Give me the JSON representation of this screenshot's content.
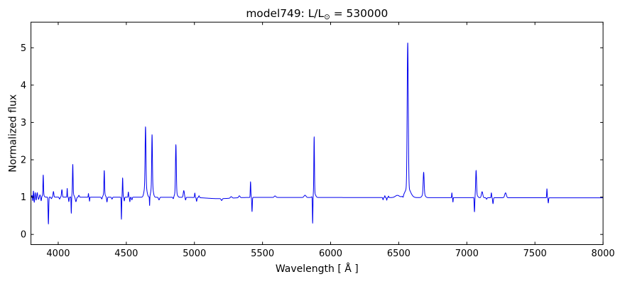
{
  "chart_data": {
    "type": "line",
    "title": "model749: L/L⊙ = 530000",
    "title_parts": {
      "prefix": "model749: L/L",
      "sun": "⊙",
      "suffix": " = 530000"
    },
    "xlabel": "Wavelength [ Å ]",
    "ylabel": "Normalized flux",
    "xlim": [
      3800,
      8000
    ],
    "ylim": [
      -0.272,
      5.686
    ],
    "xticks": [
      4000,
      4500,
      5000,
      5500,
      6000,
      6500,
      7000,
      7500,
      8000
    ],
    "yticks": [
      0,
      1,
      2,
      3,
      4,
      5
    ],
    "grid": false,
    "legend": "none",
    "line_color": "#0000ee",
    "frame_color": "#000000",
    "background_color": "#ffffff",
    "continuum": {
      "start_flux": 1.0,
      "end_flux": 0.98
    },
    "emission_lines": [
      {
        "wavelength": 3890,
        "peak_flux": 1.6,
        "sigma": 2.0,
        "base_amp": 0.07,
        "base_sigma": 6
      },
      {
        "wavelength": 3965,
        "peak_flux": 1.15,
        "sigma": 3.0
      },
      {
        "wavelength": 4027,
        "peak_flux": 1.2,
        "sigma": 3.0
      },
      {
        "wavelength": 4107,
        "peak_flux": 1.88,
        "sigma": 2.2,
        "base_amp": 0.1,
        "base_sigma": 7
      },
      {
        "wavelength": 4338,
        "peak_flux": 1.72,
        "sigma": 2.2,
        "base_amp": 0.1,
        "base_sigma": 7
      },
      {
        "wavelength": 4473,
        "peak_flux": 1.52,
        "sigma": 2.0
      },
      {
        "wavelength": 4641,
        "peak_flux": 2.89,
        "sigma": 3.0,
        "base_amp": 0.34,
        "base_sigma": 9
      },
      {
        "wavelength": 4689,
        "peak_flux": 2.68,
        "sigma": 2.6,
        "base_amp": 0.3,
        "base_sigma": 8
      },
      {
        "wavelength": 4864,
        "peak_flux": 2.41,
        "sigma": 3.0,
        "base_amp": 0.13,
        "base_sigma": 9
      },
      {
        "wavelength": 4922,
        "peak_flux": 1.18,
        "sigma": 4.0
      },
      {
        "wavelength": 5412,
        "peak_flux": 1.42,
        "sigma": 2.0
      },
      {
        "wavelength": 5879,
        "peak_flux": 2.63,
        "sigma": 2.2,
        "base_amp": 0.13,
        "base_sigma": 9
      },
      {
        "wavelength": 6566,
        "peak_flux": 5.16,
        "sigma": 4.0,
        "base_amp": 0.26,
        "base_sigma": 20
      },
      {
        "wavelength": 6683,
        "peak_flux": 1.68,
        "sigma": 3.5,
        "base_amp": 0.1,
        "base_sigma": 10
      },
      {
        "wavelength": 7068,
        "peak_flux": 1.73,
        "sigma": 3.0,
        "base_amp": 0.1,
        "base_sigma": 9
      },
      {
        "wavelength": 7284,
        "peak_flux": 1.13,
        "sigma": 6.0
      }
    ],
    "absorption_lines": [
      {
        "wavelength": 3928,
        "min_flux": 0.28,
        "sigma": 2.2
      },
      {
        "wavelength": 4096,
        "min_flux": 0.54,
        "sigma": 1.6
      },
      {
        "wavelength": 4130,
        "min_flux": 0.88,
        "sigma": 4.0
      },
      {
        "wavelength": 4358,
        "min_flux": 0.87,
        "sigma": 2.5
      },
      {
        "wavelength": 4464,
        "min_flux": 0.41,
        "sigma": 1.6
      },
      {
        "wavelength": 4671,
        "min_flux": 0.75,
        "sigma": 1.3
      },
      {
        "wavelength": 4740,
        "min_flux": 0.93,
        "sigma": 4.0
      },
      {
        "wavelength": 5200,
        "min_flux": 0.95,
        "sigma": 4.0
      },
      {
        "wavelength": 5423,
        "min_flux": 0.62,
        "sigma": 2.0
      },
      {
        "wavelength": 5868,
        "min_flux": 0.25,
        "sigma": 1.8
      },
      {
        "wavelength": 7056,
        "min_flux": 0.58,
        "sigma": 2.2
      }
    ],
    "minor_features": [
      {
        "wavelength": 3808,
        "amp": 0.05,
        "sigma": 2
      },
      {
        "wavelength": 3813,
        "amp": -0.1,
        "sigma": 2
      },
      {
        "wavelength": 3818,
        "amp": 0.17,
        "sigma": 1.8
      },
      {
        "wavelength": 3824,
        "amp": -0.14,
        "sigma": 2
      },
      {
        "wavelength": 3831,
        "amp": 0.12,
        "sigma": 2
      },
      {
        "wavelength": 3838,
        "amp": -0.08,
        "sigma": 2
      },
      {
        "wavelength": 3846,
        "amp": 0.12,
        "sigma": 2.5
      },
      {
        "wavelength": 3856,
        "amp": -0.06,
        "sigma": 2.5
      },
      {
        "wavelength": 3866,
        "amp": 0.06,
        "sigma": 2.5
      },
      {
        "wavelength": 3875,
        "amp": -0.1,
        "sigma": 2.2
      },
      {
        "wavelength": 3950,
        "amp": -0.04,
        "sigma": 3
      },
      {
        "wavelength": 4010,
        "amp": -0.05,
        "sigma": 3
      },
      {
        "wavelength": 4066,
        "amp": 0.24,
        "sigma": 1.5
      },
      {
        "wavelength": 4078,
        "amp": -0.12,
        "sigma": 2
      },
      {
        "wavelength": 4152,
        "amp": 0.05,
        "sigma": 3
      },
      {
        "wavelength": 4222,
        "amp": 0.1,
        "sigma": 1.5
      },
      {
        "wavelength": 4230,
        "amp": -0.11,
        "sigma": 1.5
      },
      {
        "wavelength": 4320,
        "amp": -0.05,
        "sigma": 3
      },
      {
        "wavelength": 4395,
        "amp": -0.05,
        "sigma": 3
      },
      {
        "wavelength": 4485,
        "amp": -0.1,
        "sigma": 2
      },
      {
        "wavelength": 4515,
        "amp": 0.14,
        "sigma": 2
      },
      {
        "wavelength": 4526,
        "amp": -0.12,
        "sigma": 2
      },
      {
        "wavelength": 4541,
        "amp": -0.07,
        "sigma": 2.5
      },
      {
        "wavelength": 4845,
        "amp": -0.05,
        "sigma": 3
      },
      {
        "wavelength": 4935,
        "amp": -0.07,
        "sigma": 2.5
      },
      {
        "wavelength": 5003,
        "amp": 0.12,
        "sigma": 2
      },
      {
        "wavelength": 5016,
        "amp": -0.1,
        "sigma": 2.5
      },
      {
        "wavelength": 5034,
        "amp": 0.05,
        "sigma": 3
      },
      {
        "wavelength": 5180,
        "amp": -0.035,
        "sigma": 90
      },
      {
        "wavelength": 5270,
        "amp": 0.04,
        "sigma": 6
      },
      {
        "wavelength": 5330,
        "amp": 0.05,
        "sigma": 5
      },
      {
        "wavelength": 5592,
        "amp": 0.04,
        "sigma": 6
      },
      {
        "wavelength": 5812,
        "amp": 0.06,
        "sigma": 7
      },
      {
        "wavelength": 6385,
        "amp": -0.06,
        "sigma": 2
      },
      {
        "wavelength": 6398,
        "amp": 0.05,
        "sigma": 2
      },
      {
        "wavelength": 6412,
        "amp": -0.07,
        "sigma": 2
      },
      {
        "wavelength": 6425,
        "amp": 0.04,
        "sigma": 2
      },
      {
        "wavelength": 6490,
        "amp": 0.06,
        "sigma": 15
      },
      {
        "wavelength": 6532,
        "amp": -0.05,
        "sigma": 3
      },
      {
        "wavelength": 6890,
        "amp": 0.13,
        "sigma": 1.5
      },
      {
        "wavelength": 6898,
        "amp": -0.12,
        "sigma": 1.5
      },
      {
        "wavelength": 7112,
        "amp": 0.16,
        "sigma": 5
      },
      {
        "wavelength": 7145,
        "amp": -0.04,
        "sigma": 3
      },
      {
        "wavelength": 7180,
        "amp": 0.13,
        "sigma": 2
      },
      {
        "wavelength": 7192,
        "amp": -0.16,
        "sigma": 2.5
      },
      {
        "wavelength": 7588,
        "amp": 0.24,
        "sigma": 1.8
      },
      {
        "wavelength": 7598,
        "amp": -0.14,
        "sigma": 2
      }
    ]
  }
}
